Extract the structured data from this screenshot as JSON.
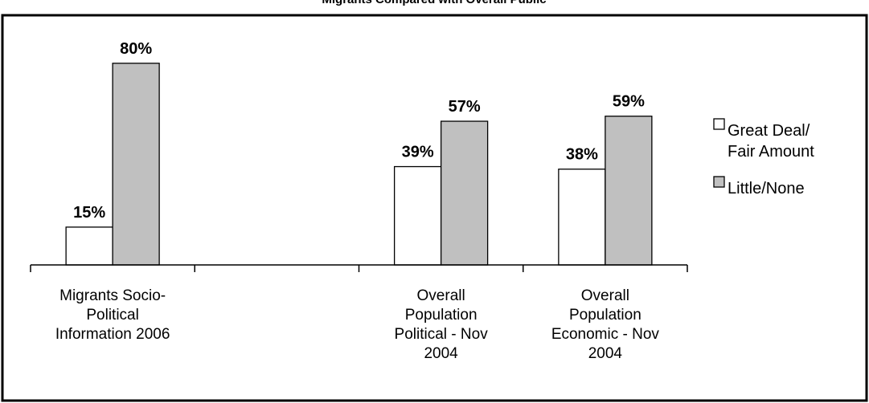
{
  "chart_data": {
    "type": "bar",
    "title": "Migrants Compared with Overall Public",
    "categories": [
      [
        "Migrants Socio-",
        "Political",
        "Information 2006"
      ],
      [
        "",
        "",
        ""
      ],
      [
        "Overall",
        "Population",
        "Political - Nov",
        "2004"
      ],
      [
        "Overall",
        "Population",
        "Economic - Nov",
        "2004"
      ]
    ],
    "series": [
      {
        "name": "Great Deal/ Fair Amount",
        "legend_lines": [
          "Great Deal/",
          "Fair Amount"
        ],
        "color": "#ffffff",
        "values": [
          15,
          null,
          39,
          38
        ],
        "labels": [
          "15%",
          "",
          "39%",
          "38%"
        ]
      },
      {
        "name": "Little/None",
        "legend_lines": [
          "Little/None"
        ],
        "color": "#c0c0c0",
        "values": [
          80,
          null,
          57,
          59
        ],
        "labels": [
          "80%",
          "",
          "57%",
          "59%"
        ]
      }
    ],
    "ylim": [
      0,
      100
    ],
    "grid": false,
    "legend_position": "right"
  }
}
